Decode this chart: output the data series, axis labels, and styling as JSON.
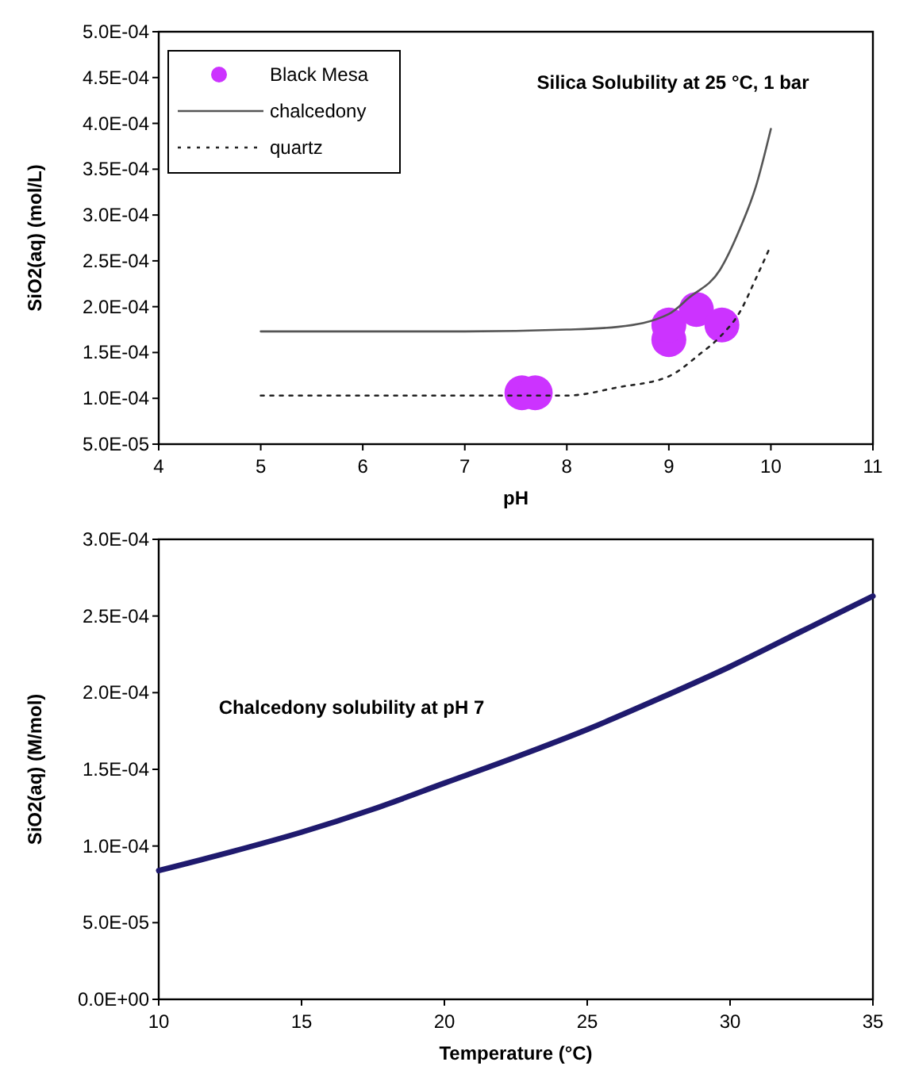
{
  "chart_data": [
    {
      "type": "line",
      "title": "Silica Solubility at 25 °C, 1 bar",
      "xlabel": "pH",
      "ylabel": "SiO2(aq) (mol/L)",
      "xlim": [
        4,
        11
      ],
      "xticks": [
        4,
        5,
        6,
        7,
        8,
        9,
        10,
        11
      ],
      "ylim": [
        5e-05,
        0.0005
      ],
      "yticks": [
        {
          "value": 5e-05,
          "label": "5.0E-05"
        },
        {
          "value": 0.0001,
          "label": "1.0E-04"
        },
        {
          "value": 0.00015,
          "label": "1.5E-04"
        },
        {
          "value": 0.0002,
          "label": "2.0E-04"
        },
        {
          "value": 0.00025,
          "label": "2.5E-04"
        },
        {
          "value": 0.0003,
          "label": "3.0E-04"
        },
        {
          "value": 0.00035,
          "label": "3.5E-04"
        },
        {
          "value": 0.0004,
          "label": "4.0E-04"
        },
        {
          "value": 0.00045,
          "label": "4.5E-04"
        },
        {
          "value": 0.0005,
          "label": "5.0E-04"
        }
      ],
      "grid": false,
      "legend": "top left",
      "series": [
        {
          "name": "Black Mesa",
          "type": "scatter",
          "marker": "circle",
          "color": "#cc33ff",
          "x": [
            7.56,
            7.69,
            9.0,
            9.0,
            9.27,
            9.52
          ],
          "values": [
            0.000106,
            0.000106,
            0.000164,
            0.00018,
            0.000197,
            0.00018
          ]
        },
        {
          "name": "chalcedony",
          "line_style": "solid",
          "color": "#555555",
          "x": [
            5,
            6,
            7,
            8,
            8.5,
            9,
            9.2,
            9.5,
            9.7,
            9.85,
            10
          ],
          "values": [
            0.000173,
            0.000173,
            0.000173,
            0.000175,
            0.000178,
            0.000192,
            0.00021,
            0.00024,
            0.000286,
            0.00033,
            0.000394
          ]
        },
        {
          "name": "quartz",
          "line_style": "dotted",
          "color": "#222222",
          "x": [
            5,
            6,
            7,
            8,
            8.5,
            9,
            9.3,
            9.5,
            9.7,
            9.85,
            10
          ],
          "values": [
            0.000103,
            0.000103,
            0.000103,
            0.000103,
            0.000112,
            0.000124,
            0.000148,
            0.000167,
            0.000195,
            0.00023,
            0.000267
          ]
        }
      ]
    },
    {
      "type": "line",
      "xlabel": "Temperature (°C)",
      "ylabel": "SiO2(aq) (M/mol)",
      "annotations": [
        "Chalcedony solubility at pH 7"
      ],
      "xlim": [
        10,
        35
      ],
      "xticks": [
        10,
        15,
        20,
        25,
        30,
        35
      ],
      "ylim": [
        0,
        0.0003
      ],
      "yticks": [
        {
          "value": 0,
          "label": "0.0E+00"
        },
        {
          "value": 5e-05,
          "label": "5.0E-05"
        },
        {
          "value": 0.0001,
          "label": "1.0E-04"
        },
        {
          "value": 0.00015,
          "label": "1.5E-04"
        },
        {
          "value": 0.0002,
          "label": "2.0E-04"
        },
        {
          "value": 0.00025,
          "label": "2.5E-04"
        },
        {
          "value": 0.0003,
          "label": "3.0E-04"
        }
      ],
      "grid": false,
      "series": [
        {
          "color": "#1f1a6e",
          "line_style": "solid",
          "x": [
            10,
            12.5,
            15,
            17.5,
            20,
            22.5,
            25,
            27.5,
            30,
            32.5,
            35
          ],
          "values": [
            8.4e-05,
            9.6e-05,
            0.000109,
            0.000124,
            0.000141,
            0.000158,
            0.000176,
            0.000196,
            0.000217,
            0.00024,
            0.000263
          ]
        }
      ]
    }
  ]
}
